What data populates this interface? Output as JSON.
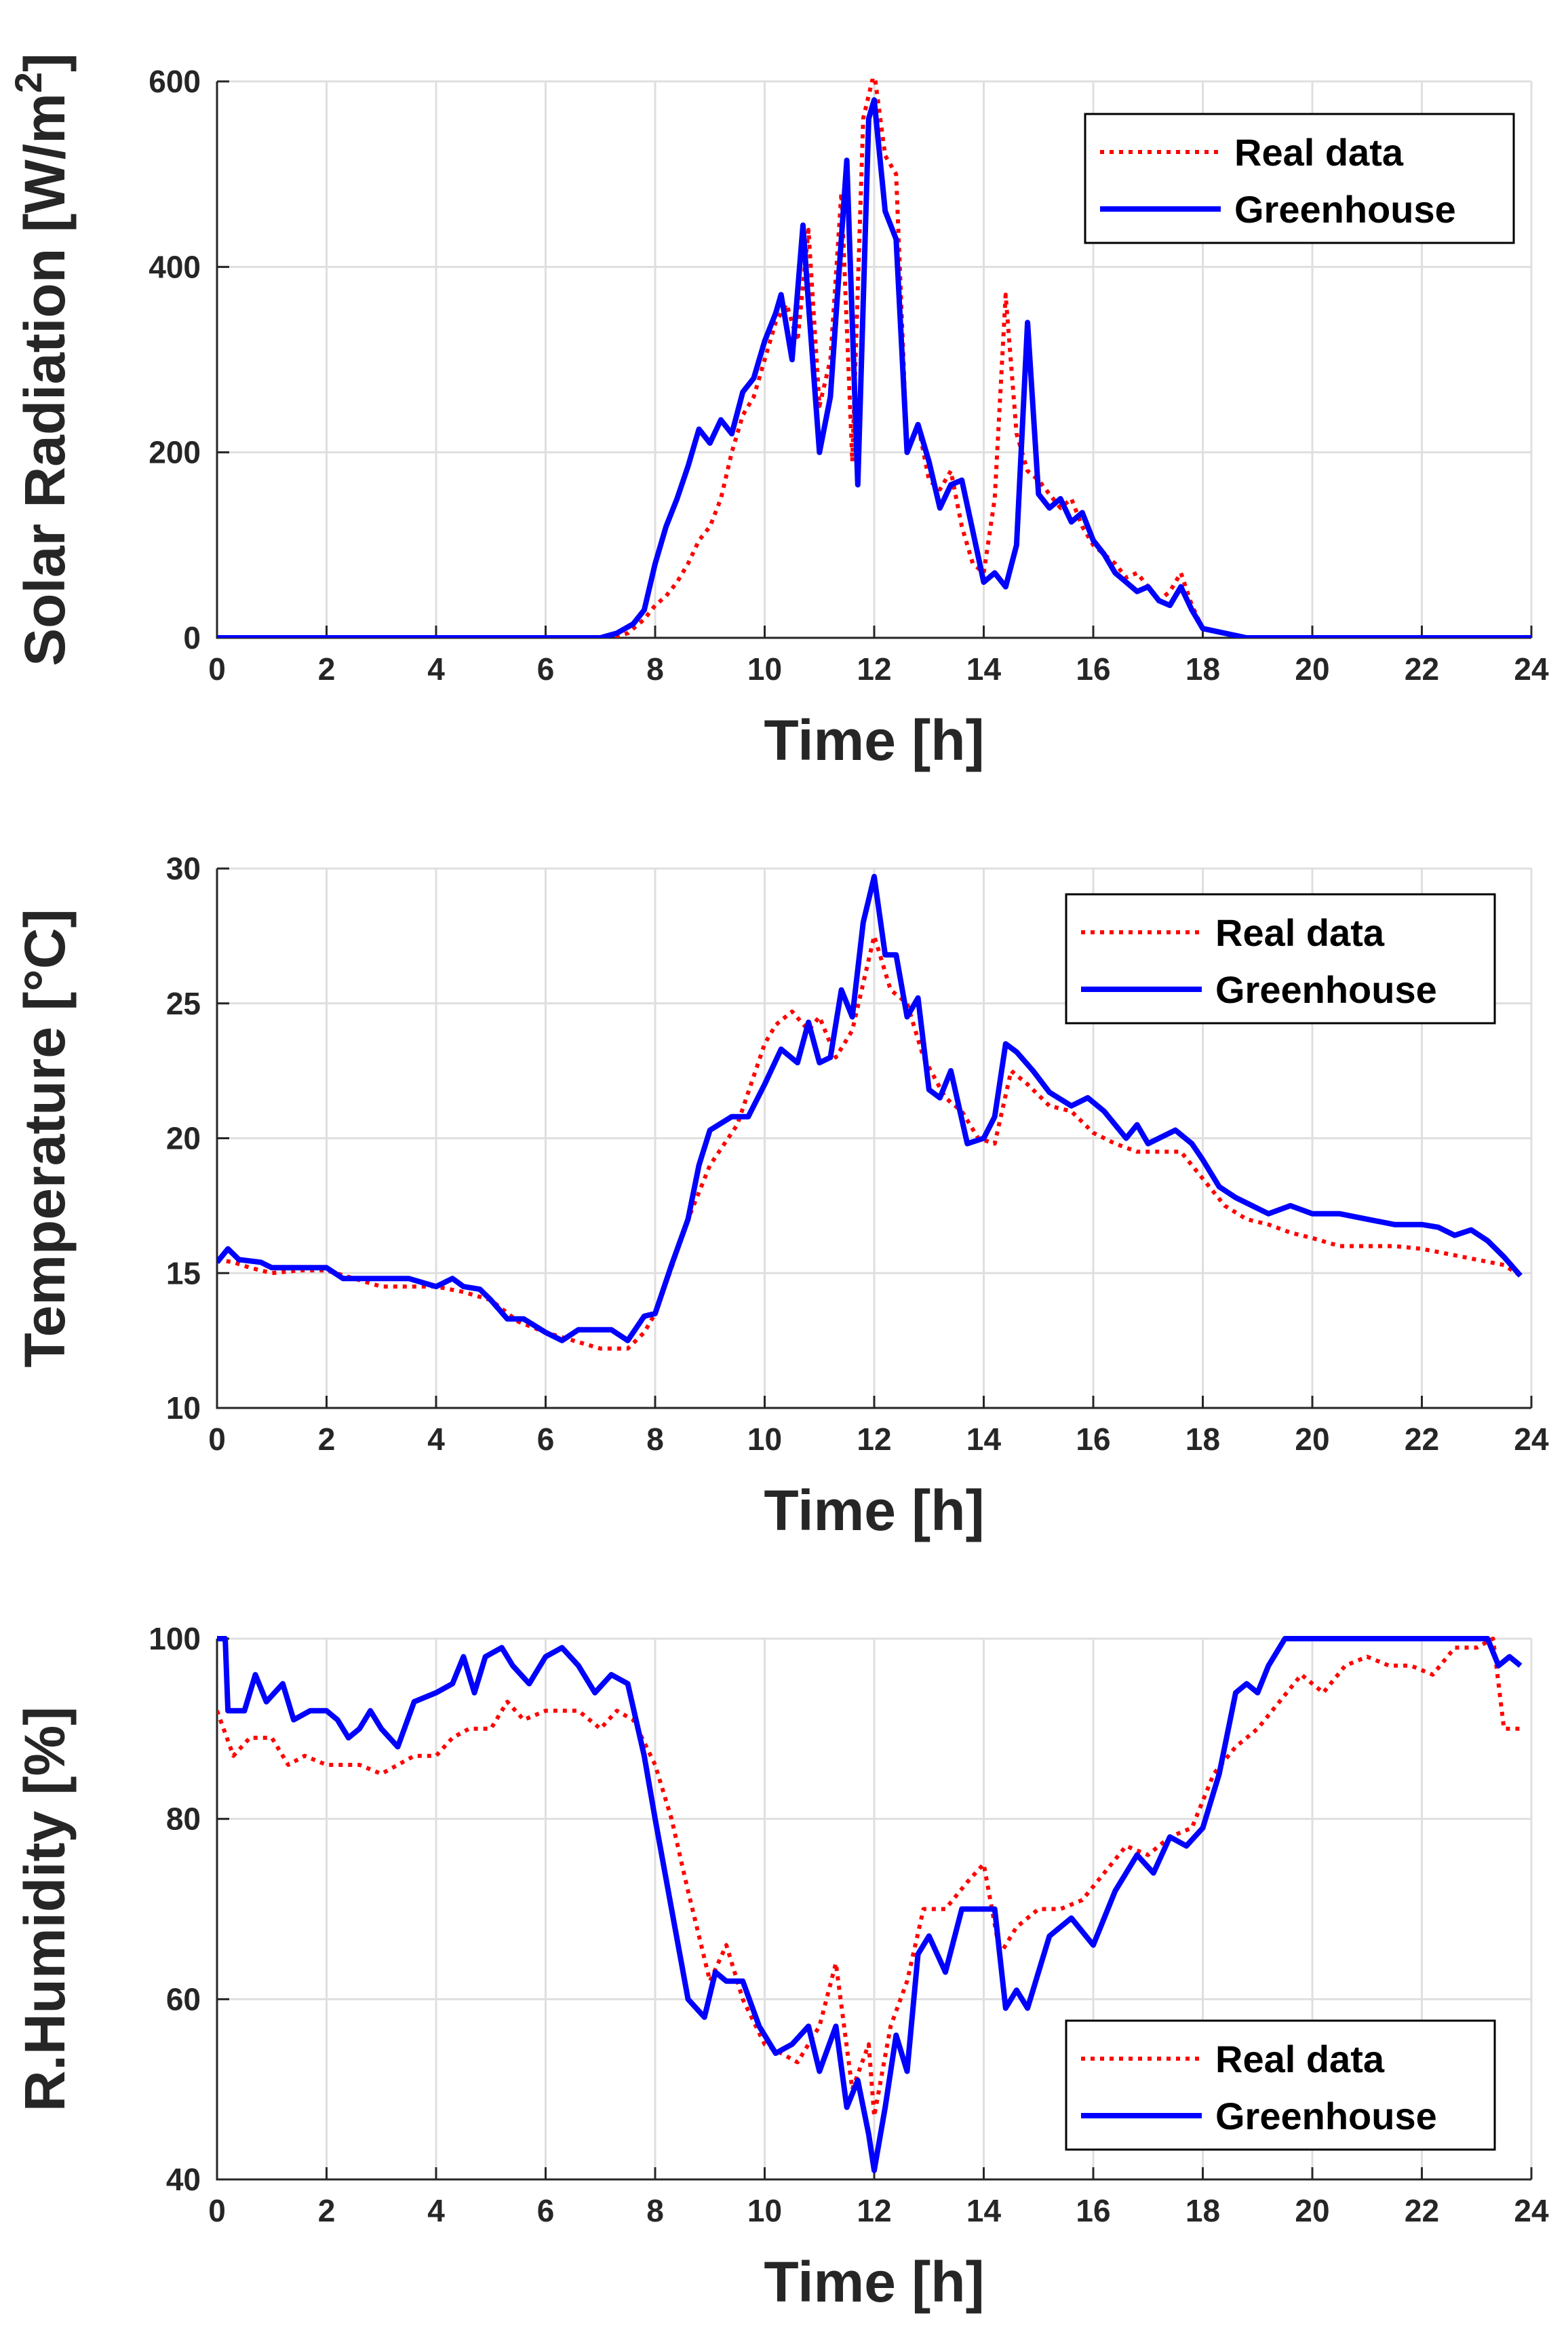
{
  "colors": {
    "real": "#ff0000",
    "greenhouse": "#0000ff"
  },
  "chart_data": [
    {
      "type": "line",
      "ylabel": "Solar Radiation [W/m²]",
      "xlabel": "Time [h]",
      "xlim": [
        0,
        24
      ],
      "ylim": [
        0,
        600
      ],
      "xticks": [
        "0",
        "2",
        "4",
        "6",
        "8",
        "10",
        "12",
        "14",
        "16",
        "18",
        "20",
        "22",
        "24"
      ],
      "yticks": [
        "0",
        "200",
        "400",
        "600"
      ],
      "grid": true,
      "legend": "top-right",
      "series": [
        {
          "name": "Real data",
          "style": "dotted",
          "color": "red",
          "x": [
            0,
            7.2,
            7.5,
            7.8,
            8,
            8.2,
            8.4,
            8.6,
            8.8,
            9,
            9.2,
            9.4,
            9.6,
            9.8,
            10,
            10.2,
            10.4,
            10.6,
            10.8,
            11,
            11.2,
            11.4,
            11.6,
            11.8,
            12,
            12.2,
            12.4,
            12.6,
            12.8,
            13,
            13.2,
            13.4,
            13.6,
            13.8,
            14,
            14.2,
            14.4,
            14.6,
            14.8,
            15,
            15.2,
            15.4,
            15.6,
            15.8,
            16,
            16.2,
            16.4,
            16.6,
            16.8,
            17,
            17.2,
            17.4,
            17.6,
            17.8,
            18,
            18.4,
            18.8,
            24
          ],
          "y": [
            0,
            0,
            5,
            20,
            35,
            45,
            60,
            80,
            105,
            120,
            150,
            200,
            240,
            260,
            300,
            340,
            360,
            320,
            440,
            250,
            300,
            480,
            190,
            560,
            610,
            520,
            500,
            200,
            230,
            170,
            160,
            180,
            120,
            80,
            70,
            150,
            370,
            220,
            180,
            170,
            155,
            140,
            150,
            120,
            100,
            90,
            80,
            65,
            70,
            55,
            40,
            50,
            70,
            35,
            10,
            5,
            0,
            0
          ]
        },
        {
          "name": "Greenhouse",
          "style": "solid",
          "color": "blue",
          "x": [
            0,
            7,
            7.3,
            7.6,
            7.8,
            8,
            8.2,
            8.4,
            8.6,
            8.8,
            9,
            9.2,
            9.4,
            9.6,
            9.8,
            10,
            10.2,
            10.3,
            10.5,
            10.7,
            10.8,
            11,
            11.2,
            11.5,
            11.7,
            11.9,
            12,
            12.2,
            12.4,
            12.6,
            12.8,
            13,
            13.2,
            13.4,
            13.6,
            13.8,
            14,
            14.2,
            14.4,
            14.6,
            14.8,
            15,
            15.2,
            15.4,
            15.6,
            15.8,
            16,
            16.2,
            16.4,
            16.6,
            16.8,
            17,
            17.2,
            17.4,
            17.6,
            17.8,
            18,
            18.4,
            18.8,
            24
          ],
          "y": [
            0,
            0,
            5,
            15,
            30,
            80,
            120,
            150,
            185,
            225,
            210,
            235,
            220,
            265,
            280,
            320,
            350,
            370,
            300,
            445,
            360,
            200,
            260,
            515,
            165,
            560,
            580,
            460,
            430,
            200,
            230,
            190,
            140,
            165,
            170,
            115,
            60,
            70,
            55,
            100,
            340,
            155,
            140,
            150,
            125,
            135,
            105,
            90,
            70,
            60,
            50,
            55,
            40,
            35,
            55,
            30,
            10,
            5,
            0,
            0
          ]
        }
      ]
    },
    {
      "type": "line",
      "ylabel": "Temperature [°C]",
      "xlabel": "Time [h]",
      "xlim": [
        0,
        24
      ],
      "ylim": [
        10,
        30
      ],
      "xticks": [
        "0",
        "2",
        "4",
        "6",
        "8",
        "10",
        "12",
        "14",
        "16",
        "18",
        "20",
        "22",
        "24"
      ],
      "yticks": [
        "10",
        "15",
        "20",
        "25",
        "30"
      ],
      "grid": true,
      "legend": "top-right",
      "series": [
        {
          "name": "Real data",
          "style": "dotted",
          "color": "red",
          "x": [
            0,
            0.3,
            0.6,
            1,
            1.5,
            2,
            2.5,
            3,
            3.5,
            4,
            4.5,
            5,
            5.5,
            6,
            6.5,
            7,
            7.5,
            7.8,
            8,
            8.3,
            8.6,
            9,
            9.5,
            10,
            10.2,
            10.5,
            10.8,
            11,
            11.3,
            11.6,
            12,
            12.3,
            12.6,
            12.9,
            13.3,
            13.6,
            13.9,
            14.2,
            14.5,
            14.8,
            15.2,
            15.6,
            16,
            16.4,
            16.8,
            17.2,
            17.6,
            18,
            18.4,
            18.8,
            19.2,
            19.6,
            20,
            20.5,
            21,
            21.5,
            22,
            22.5,
            23,
            23.5,
            23.8
          ],
          "y": [
            15.5,
            15.4,
            15.2,
            15.0,
            15.1,
            15.1,
            14.8,
            14.5,
            14.5,
            14.5,
            14.3,
            14.0,
            13.2,
            12.8,
            12.5,
            12.2,
            12.2,
            12.8,
            13.5,
            15.2,
            17.0,
            19.0,
            20.5,
            23.5,
            24.2,
            24.7,
            24.0,
            24.5,
            23.0,
            24.0,
            27.5,
            25.5,
            25.0,
            23.0,
            21.5,
            21.0,
            20.0,
            19.8,
            22.5,
            22.0,
            21.2,
            21.0,
            20.2,
            19.8,
            19.5,
            19.5,
            19.5,
            18.5,
            17.5,
            17.0,
            16.8,
            16.5,
            16.3,
            16.0,
            16.0,
            16.0,
            15.9,
            15.7,
            15.5,
            15.3,
            14.9
          ]
        },
        {
          "name": "Greenhouse",
          "style": "solid",
          "color": "blue",
          "x": [
            0,
            0.2,
            0.4,
            0.8,
            1,
            1.5,
            2,
            2.3,
            3,
            3.5,
            4,
            4.3,
            4.5,
            4.8,
            5,
            5.3,
            5.6,
            6,
            6.3,
            6.6,
            7,
            7.2,
            7.5,
            7.8,
            8,
            8.3,
            8.6,
            8.8,
            9,
            9.4,
            9.7,
            10,
            10.3,
            10.6,
            10.8,
            11,
            11.2,
            11.4,
            11.6,
            11.8,
            12,
            12.2,
            12.4,
            12.6,
            12.8,
            13,
            13.2,
            13.4,
            13.7,
            14,
            14.2,
            14.4,
            14.6,
            14.9,
            15.2,
            15.6,
            15.9,
            16.2,
            16.6,
            16.8,
            17,
            17.2,
            17.5,
            17.8,
            18,
            18.3,
            18.6,
            18.9,
            19.2,
            19.6,
            20,
            20.5,
            21,
            21.5,
            22,
            22.3,
            22.6,
            22.9,
            23.2,
            23.5,
            23.8
          ],
          "y": [
            15.4,
            15.9,
            15.5,
            15.4,
            15.2,
            15.2,
            15.2,
            14.8,
            14.8,
            14.8,
            14.5,
            14.8,
            14.5,
            14.4,
            14.0,
            13.3,
            13.3,
            12.8,
            12.5,
            12.9,
            12.9,
            12.9,
            12.5,
            13.4,
            13.5,
            15.3,
            17.0,
            19.0,
            20.3,
            20.8,
            20.8,
            22.0,
            23.3,
            22.8,
            24.3,
            22.8,
            23.0,
            25.5,
            24.5,
            28.0,
            29.7,
            26.8,
            26.8,
            24.5,
            25.2,
            21.8,
            21.5,
            22.5,
            19.8,
            20.0,
            20.8,
            23.5,
            23.2,
            22.5,
            21.7,
            21.2,
            21.5,
            21.0,
            20.0,
            20.5,
            19.8,
            20.0,
            20.3,
            19.8,
            19.2,
            18.2,
            17.8,
            17.5,
            17.2,
            17.5,
            17.2,
            17.2,
            17.0,
            16.8,
            16.8,
            16.7,
            16.4,
            16.6,
            16.2,
            15.6,
            14.9
          ]
        }
      ]
    },
    {
      "type": "line",
      "ylabel": "R.Humidity [%]",
      "xlabel": "Time [h]",
      "xlim": [
        0,
        24
      ],
      "ylim": [
        40,
        100
      ],
      "xticks": [
        "0",
        "2",
        "4",
        "6",
        "8",
        "10",
        "12",
        "14",
        "16",
        "18",
        "20",
        "22",
        "24"
      ],
      "yticks": [
        "40",
        "60",
        "80",
        "100"
      ],
      "grid": true,
      "legend": "bottom-right",
      "series": [
        {
          "name": "Real data",
          "style": "dotted",
          "color": "red",
          "x": [
            0,
            0.3,
            0.6,
            1,
            1.3,
            1.6,
            2,
            2.3,
            2.6,
            3,
            3.3,
            3.6,
            4,
            4.3,
            4.6,
            5,
            5.3,
            5.6,
            6,
            6.3,
            6.6,
            7,
            7.3,
            7.6,
            8,
            8.3,
            8.6,
            9,
            9.3,
            9.6,
            10,
            10.3,
            10.6,
            11,
            11.3,
            11.6,
            11.9,
            12,
            12.3,
            12.6,
            12.9,
            13.3,
            13.7,
            14,
            14.3,
            14.6,
            15,
            15.4,
            15.8,
            16.2,
            16.6,
            17,
            17.4,
            17.8,
            18.2,
            18.6,
            19,
            19.4,
            19.8,
            20.2,
            20.6,
            21,
            21.4,
            21.8,
            22.2,
            22.6,
            23,
            23.3,
            23.5,
            23.8
          ],
          "y": [
            92,
            87,
            89,
            89,
            86,
            87,
            86,
            86,
            86,
            85,
            86,
            87,
            87,
            89,
            90,
            90,
            93,
            91,
            92,
            92,
            92,
            90,
            92,
            91,
            86,
            80,
            72,
            62,
            66,
            60,
            55,
            54,
            53,
            57,
            64,
            50,
            55,
            47,
            57,
            62,
            70,
            70,
            73,
            75,
            65,
            68,
            70,
            70,
            71,
            74,
            77,
            76,
            78,
            79,
            85,
            88,
            90,
            93,
            96,
            94,
            97,
            98,
            97,
            97,
            96,
            99,
            99,
            100,
            90,
            90
          ]
        },
        {
          "name": "Greenhouse",
          "style": "solid",
          "color": "blue",
          "x": [
            0,
            0.15,
            0.2,
            0.5,
            0.7,
            0.9,
            1.2,
            1.4,
            1.7,
            2,
            2.2,
            2.4,
            2.6,
            2.8,
            3,
            3.3,
            3.6,
            4,
            4.3,
            4.5,
            4.7,
            4.9,
            5.2,
            5.4,
            5.7,
            6,
            6.3,
            6.6,
            6.9,
            7.2,
            7.5,
            7.8,
            8,
            8.3,
            8.6,
            8.9,
            9.1,
            9.3,
            9.6,
            9.9,
            10.2,
            10.5,
            10.8,
            11,
            11.3,
            11.5,
            11.7,
            11.9,
            12,
            12.2,
            12.4,
            12.6,
            12.8,
            13,
            13.3,
            13.6,
            13.9,
            14.2,
            14.4,
            14.6,
            14.8,
            15.2,
            15.6,
            16,
            16.4,
            16.8,
            17.1,
            17.4,
            17.7,
            18,
            18.3,
            18.6,
            18.8,
            19,
            19.2,
            19.5,
            20,
            20.5,
            21,
            21.5,
            22,
            22.5,
            23,
            23.2,
            23.4,
            23.6,
            23.8
          ],
          "y": [
            100,
            100,
            92,
            92,
            96,
            93,
            95,
            91,
            92,
            92,
            91,
            89,
            90,
            92,
            90,
            88,
            93,
            94,
            95,
            98,
            94,
            98,
            99,
            97,
            95,
            98,
            99,
            97,
            94,
            96,
            95,
            87,
            80,
            70,
            60,
            58,
            63,
            62,
            62,
            57,
            54,
            55,
            57,
            52,
            57,
            48,
            51,
            45,
            41,
            48,
            56,
            52,
            65,
            67,
            63,
            70,
            70,
            70,
            59,
            61,
            59,
            67,
            69,
            66,
            72,
            76,
            74,
            78,
            77,
            79,
            85,
            94,
            95,
            94,
            97,
            100,
            100,
            100,
            100,
            100,
            100,
            100,
            100,
            100,
            97,
            98,
            97
          ]
        }
      ]
    }
  ]
}
